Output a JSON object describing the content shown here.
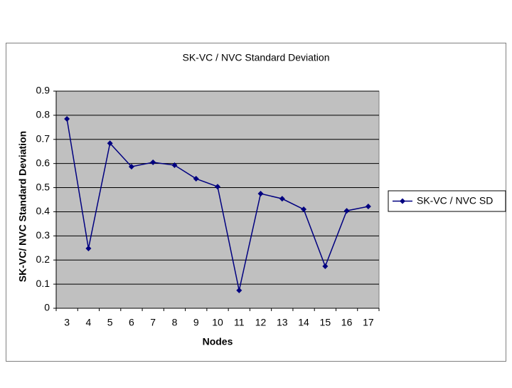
{
  "chart_data": {
    "type": "line",
    "title": "SK-VC / NVC Standard Deviation",
    "x_label": "Nodes",
    "y_label": "SK-VC/ NVC Standard Deviation",
    "categories": [
      "3",
      "4",
      "5",
      "6",
      "7",
      "8",
      "9",
      "10",
      "11",
      "12",
      "13",
      "14",
      "15",
      "16",
      "17"
    ],
    "series": [
      {
        "name": "SK-VC / NVC SD",
        "color": "#000080",
        "values": [
          0.785,
          0.248,
          0.684,
          0.587,
          0.605,
          0.593,
          0.537,
          0.504,
          0.074,
          0.475,
          0.454,
          0.41,
          0.174,
          0.404,
          0.422
        ]
      }
    ],
    "ylim": [
      0,
      0.9
    ],
    "yticks": [
      0,
      0.1,
      0.2,
      0.3,
      0.4,
      0.5,
      0.6,
      0.7,
      0.8,
      0.9
    ],
    "grid": true,
    "plot_background": "#c0c0c0",
    "legend": "right"
  }
}
